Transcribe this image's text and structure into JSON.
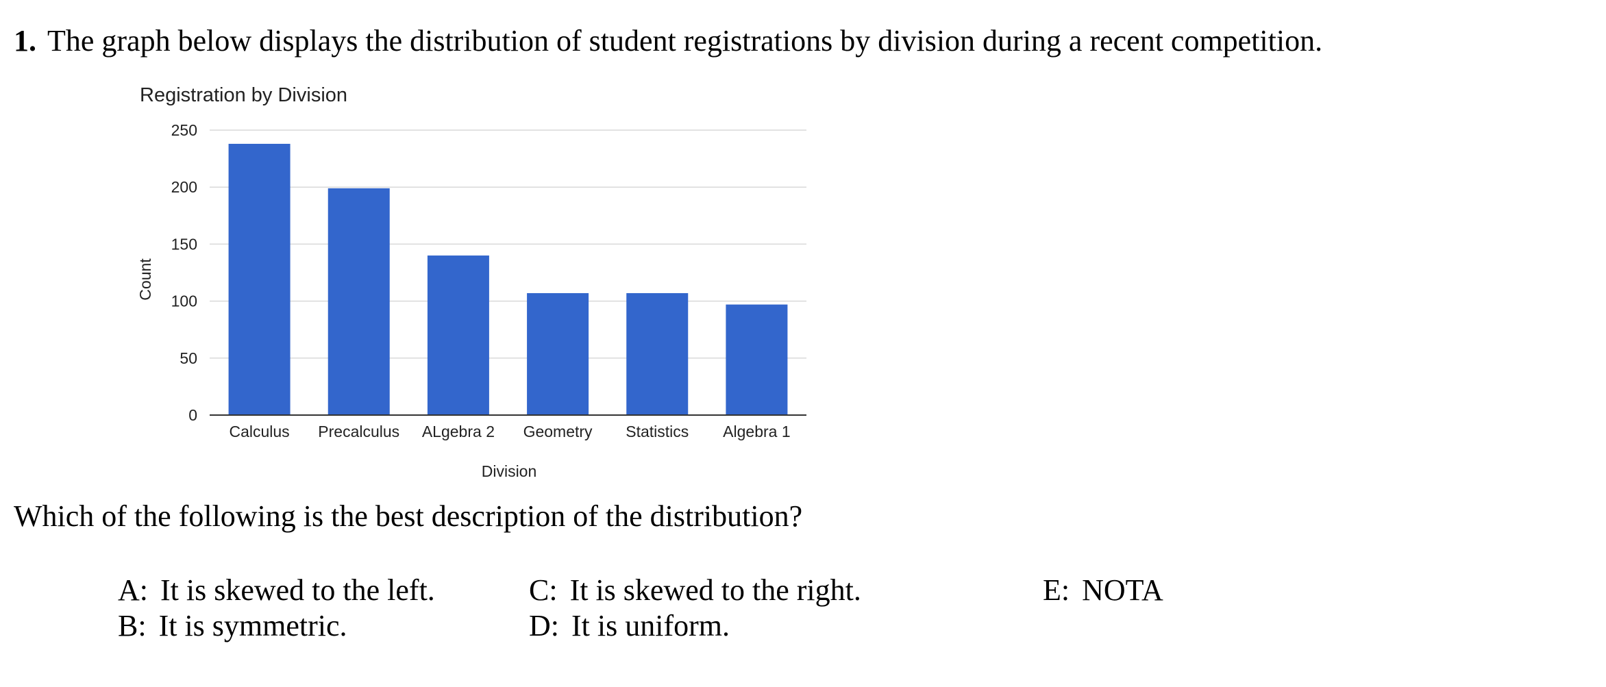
{
  "question": {
    "number": "1.",
    "text": "The graph below displays the distribution of student registrations by division during a recent competition."
  },
  "chart_data": {
    "type": "bar",
    "title": "Registration by Division",
    "xlabel": "Division",
    "ylabel": "Count",
    "categories": [
      "Calculus",
      "Precalculus",
      "ALgebra 2",
      "Geometry",
      "Statistics",
      "Algebra 1"
    ],
    "values": [
      238,
      199,
      140,
      107,
      107,
      97
    ],
    "ylim": [
      0,
      250
    ],
    "yticks": [
      "0",
      "50",
      "100",
      "150",
      "200",
      "250"
    ],
    "grid": true,
    "legend": "none",
    "bar_color": "#3366cc"
  },
  "prompt": "Which of the following is the best description of the distribution?",
  "choices": [
    {
      "letter": "A:",
      "text": "It is skewed to the left."
    },
    {
      "letter": "B:",
      "text": "It is symmetric."
    },
    {
      "letter": "C:",
      "text": "It is skewed to the right."
    },
    {
      "letter": "D:",
      "text": "It is uniform."
    },
    {
      "letter": "E:",
      "text": "NOTA"
    }
  ],
  "colors": {
    "bar": "#3366cc",
    "gridline": "#d9d9d9",
    "axis": "#333333",
    "chart_text": "#222222"
  }
}
